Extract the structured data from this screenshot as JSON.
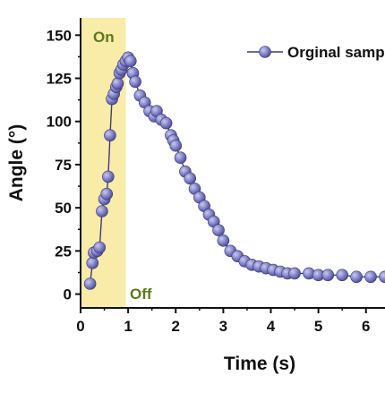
{
  "chart_data": {
    "type": "scatter",
    "xlabel": "Time (s)",
    "ylabel": "Angle (°)",
    "xlim": [
      0,
      6.4
    ],
    "ylim": [
      -8,
      160
    ],
    "x_ticks": [
      0,
      1,
      2,
      3,
      4,
      5,
      6
    ],
    "y_ticks": [
      0,
      25,
      50,
      75,
      100,
      125,
      150
    ],
    "highlight_region": {
      "x_start": 0,
      "x_end": 0.95,
      "color": "#f9eba8"
    },
    "annotations": {
      "on_label": "On",
      "off_label": "Off"
    },
    "legend_position": "top-right",
    "series": [
      {
        "name": "Orginal sample",
        "color": "#7b7bc4",
        "x": [
          0.2,
          0.25,
          0.28,
          0.35,
          0.4,
          0.45,
          0.5,
          0.55,
          0.58,
          0.62,
          0.66,
          0.7,
          0.75,
          0.78,
          0.82,
          0.86,
          0.9,
          0.95,
          1.0,
          1.05,
          1.1,
          1.15,
          1.25,
          1.35,
          1.45,
          1.55,
          1.6,
          1.7,
          1.8,
          1.9,
          1.95,
          2.0,
          2.1,
          2.2,
          2.3,
          2.4,
          2.5,
          2.6,
          2.7,
          2.8,
          2.9,
          3.0,
          3.15,
          3.3,
          3.45,
          3.6,
          3.75,
          3.9,
          4.05,
          4.2,
          4.35,
          4.5,
          4.8,
          5.0,
          5.2,
          5.5,
          5.8,
          6.1,
          6.4
        ],
        "y": [
          6,
          18,
          24,
          25,
          27,
          48,
          55,
          58,
          68,
          92,
          113,
          116,
          120,
          122,
          128,
          130,
          133,
          135,
          137,
          135,
          128,
          123,
          115,
          111,
          106,
          103,
          106,
          101,
          99,
          92,
          89,
          86,
          79,
          71,
          67,
          61,
          56,
          51,
          46,
          42,
          37,
          31,
          25,
          22,
          19,
          17,
          16,
          15,
          14,
          13,
          12,
          12,
          12,
          11,
          11,
          11,
          10,
          10,
          10
        ]
      }
    ]
  }
}
